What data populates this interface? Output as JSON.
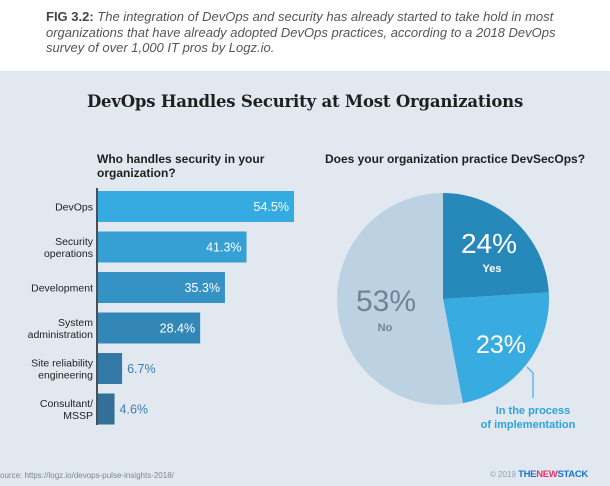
{
  "caption": {
    "fig_label": "FIG 3.2:",
    "text": " The integration of DevOps and security has already started to take hold in most organizations that have already adopted DevOps practices, according to a 2018 DevOps survey of over 1,000 IT pros by Logz.io."
  },
  "footer": {
    "source": "ource: https://logz.io/devops-pulse-insights-2018/",
    "copyright": "© 2019",
    "brand_the": "THE",
    "brand_new": "NEW",
    "brand_stack": "STACK"
  },
  "colors": {
    "background": "#e1e8f0",
    "yes": "#2689b9",
    "in_process": "#38abe0",
    "no": "#bcd2e3"
  },
  "chart_data": [
    {
      "type": "bar",
      "orientation": "horizontal",
      "title": "DevOps Handles Security at Most Organizations",
      "subtitle": "Who handles security in your organization?",
      "categories": [
        "DevOps",
        "Security operations",
        "Development",
        "System administration",
        "Site reliability engineering",
        "Consultant/ MSSP"
      ],
      "category_lines": [
        [
          "DevOps"
        ],
        [
          "Security",
          "operations"
        ],
        [
          "Development"
        ],
        [
          "System",
          "administration"
        ],
        [
          "Site reliability",
          "engineering"
        ],
        [
          "Consultant/",
          "MSSP"
        ]
      ],
      "values": [
        54.5,
        41.3,
        35.3,
        28.4,
        6.7,
        4.6
      ],
      "value_labels": [
        "54.5%",
        "41.3%",
        "35.3%",
        "28.4%",
        "6.7%",
        "4.6%"
      ],
      "bar_colors": [
        "#36abe1",
        "#369fd4",
        "#3592c4",
        "#3387b7",
        "#3479a6",
        "#346f98"
      ],
      "unit": "%",
      "xlim": [
        0,
        55
      ],
      "grid": false
    },
    {
      "type": "pie",
      "title": "Does your organization practice DevSecOps?",
      "slices": [
        {
          "label": "Yes",
          "value": 24,
          "display": "24%",
          "color": "#2689b9"
        },
        {
          "label": "In the process of implementation",
          "value": 23,
          "display": "23%",
          "color": "#38abe0"
        },
        {
          "label": "No",
          "value": 53,
          "display": "53%",
          "color": "#bcd2e3"
        }
      ],
      "legend": "none"
    }
  ]
}
